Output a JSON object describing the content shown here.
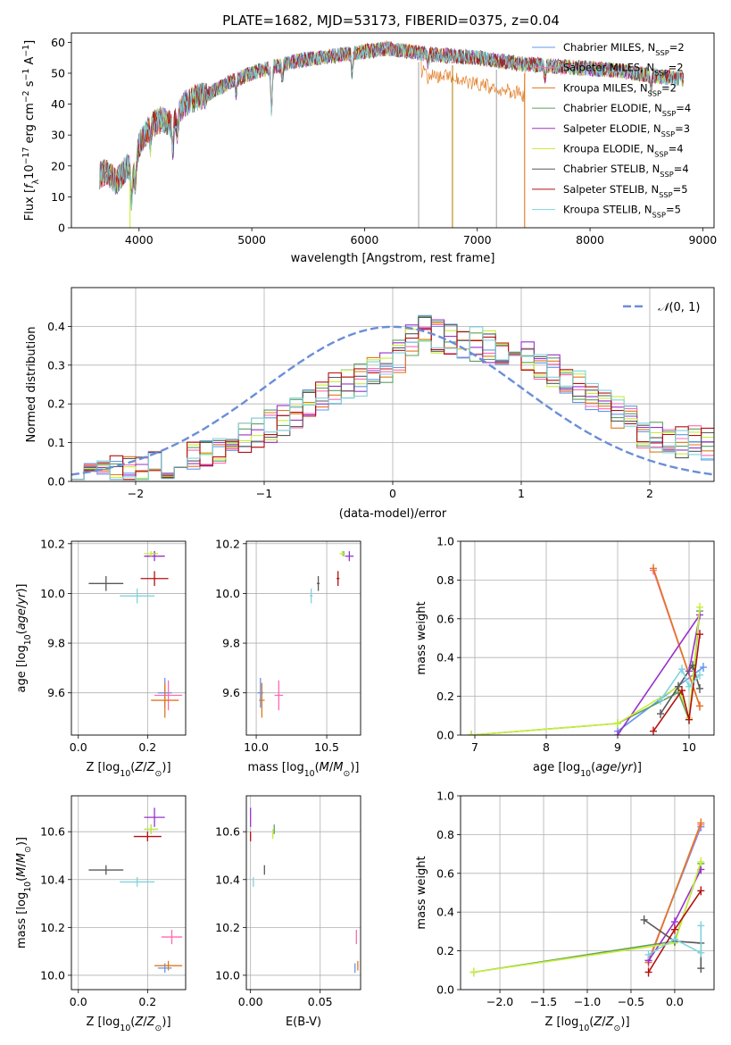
{
  "figure": {
    "title": "PLATE=1682, MJD=53173, FIBERID=0375, z=0.04"
  },
  "models": [
    {
      "label": "Chabrier MILES, N",
      "sub": "SSP",
      "n": "=2",
      "color": "#6495ed"
    },
    {
      "label": "Salpeter MILES, N",
      "sub": "SSP",
      "n": "=2",
      "color": "#ff69b4"
    },
    {
      "label": "Kroupa MILES, N",
      "sub": "SSP",
      "n": "=2",
      "color": "#e0781e"
    },
    {
      "label": "Chabrier ELODIE, N",
      "sub": "SSP",
      "n": "=4",
      "color": "#5f9f5f"
    },
    {
      "label": "Salpeter ELODIE, N",
      "sub": "SSP",
      "n": "=3",
      "color": "#9932cc"
    },
    {
      "label": "Kroupa ELODIE, N",
      "sub": "SSP",
      "n": "=4",
      "color": "#c8ee3a"
    },
    {
      "label": "Chabrier STELIB, N",
      "sub": "SSP",
      "n": "=4",
      "color": "#595959"
    },
    {
      "label": "Salpeter STELIB, N",
      "sub": "SSP",
      "n": "=5",
      "color": "#b41010"
    },
    {
      "label": "Kroupa STELIB, N",
      "sub": "SSP",
      "n": "=5",
      "color": "#7fd3dd"
    }
  ],
  "chart_data": [
    {
      "id": "spectrum",
      "type": "line",
      "xlabel": "wavelength [Angstrom, rest frame]",
      "ylabel": "Flux [fλ10⁻¹⁷ erg cm⁻² s⁻¹ A⁻¹]",
      "xlim": [
        3400,
        9100
      ],
      "ylim": [
        0,
        63
      ],
      "xticks": [
        4000,
        5000,
        6000,
        7000,
        8000,
        9000
      ],
      "yticks": [
        0,
        10,
        20,
        30,
        40,
        50,
        60
      ],
      "x_range_data": [
        3650,
        8830
      ],
      "continuum": {
        "x": [
          3650,
          3700,
          3800,
          3900,
          3950,
          4000,
          4100,
          4200,
          4300,
          4400,
          4500,
          4600,
          4800,
          5000,
          5200,
          5400,
          5600,
          5800,
          6000,
          6200,
          6400,
          6600,
          7000,
          7400,
          7800,
          8200,
          8600,
          8830
        ],
        "y": [
          17,
          18,
          15,
          20,
          17,
          27,
          33,
          35,
          33,
          40,
          42,
          43,
          47,
          50,
          52,
          54,
          55,
          56,
          57,
          58,
          57,
          56,
          55,
          53,
          52,
          51,
          49,
          48
        ]
      },
      "absorption_lines": [
        {
          "x": 3933,
          "depth": 9
        },
        {
          "x": 3968,
          "depth": 7
        },
        {
          "x": 4101,
          "depth": 6
        },
        {
          "x": 4300,
          "depth": 8
        },
        {
          "x": 4340,
          "depth": 5
        },
        {
          "x": 4861,
          "depth": 5
        },
        {
          "x": 5175,
          "depth": 14
        },
        {
          "x": 5270,
          "depth": 5
        },
        {
          "x": 5890,
          "depth": 7
        },
        {
          "x": 6563,
          "depth": 3
        },
        {
          "x": 7600,
          "depth": 4
        },
        {
          "x": 8542,
          "depth": 4
        }
      ],
      "dropouts": [
        {
          "series": 2,
          "x": 6780,
          "color": "#b8860b"
        },
        {
          "series": 2,
          "x": 7420,
          "color": "#e0781e"
        },
        {
          "series": 6,
          "x": 6480,
          "color": "#aaaaaa"
        },
        {
          "series": 6,
          "x": 7170,
          "color": "#aaaaaa"
        },
        {
          "series": 5,
          "x": 3920,
          "color": "#c8ee3a"
        }
      ],
      "series_note_orange_lower": [
        6500,
        7420
      ]
    },
    {
      "id": "residual_histogram",
      "type": "bar",
      "xlabel": "(data-model)/error",
      "ylabel": "Normed distribution",
      "xlim": [
        -2.5,
        2.5
      ],
      "ylim": [
        0,
        0.5
      ],
      "xticks": [
        -2,
        -1,
        0,
        1,
        2
      ],
      "yticks": [
        0.0,
        0.1,
        0.2,
        0.3,
        0.4
      ],
      "bin_width": 0.1,
      "gaussian_label": "𝒩(0, 1)",
      "gaussian_color": "#6a8ed8",
      "shape": {
        "x": [
          -2.5,
          -2.0,
          -1.5,
          -1.0,
          -0.5,
          0.0,
          0.2,
          0.5,
          1.0,
          1.5,
          2.0,
          2.5
        ],
        "y": [
          0.02,
          0.03,
          0.06,
          0.13,
          0.23,
          0.3,
          0.39,
          0.36,
          0.34,
          0.23,
          0.12,
          0.09
        ]
      }
    },
    {
      "id": "age_vs_Z",
      "type": "scatter",
      "xlabel": "Z [log10(Z/Z⊙)]",
      "ylabel": "age  [log10(age/yr)]",
      "xlim": [
        -0.02,
        0.31
      ],
      "ylim": [
        9.43,
        10.21
      ],
      "xticks": [
        0.0,
        0.2
      ],
      "yticks": [
        9.6,
        9.8,
        10.0,
        10.2
      ],
      "points": [
        {
          "series": 0,
          "x": 0.25,
          "y": 9.6,
          "xerr": 0.02,
          "yerr": 0.06
        },
        {
          "series": 1,
          "x": 0.26,
          "y": 9.59,
          "xerr": 0.04,
          "yerr": 0.06
        },
        {
          "series": 2,
          "x": 0.25,
          "y": 9.57,
          "xerr": 0.04,
          "yerr": 0.07
        },
        {
          "series": 3,
          "x": 0.22,
          "y": 10.16,
          "xerr": 0.01,
          "yerr": 0.01
        },
        {
          "series": 4,
          "x": 0.22,
          "y": 10.15,
          "xerr": 0.03,
          "yerr": 0.02
        },
        {
          "series": 5,
          "x": 0.21,
          "y": 10.16,
          "xerr": 0.02,
          "yerr": 0.01
        },
        {
          "series": 6,
          "x": 0.08,
          "y": 10.04,
          "xerr": 0.05,
          "yerr": 0.03
        },
        {
          "series": 7,
          "x": 0.22,
          "y": 10.06,
          "xerr": 0.04,
          "yerr": 0.03
        },
        {
          "series": 8,
          "x": 0.17,
          "y": 9.99,
          "xerr": 0.05,
          "yerr": 0.03
        }
      ]
    },
    {
      "id": "age_vs_mass",
      "type": "scatter",
      "xlabel": "mass [log10(M/M⊙)]",
      "ylabel": "",
      "xlim": [
        9.93,
        10.74
      ],
      "ylim": [
        9.43,
        10.21
      ],
      "xticks": [
        10.0,
        10.5
      ],
      "yticks": [
        9.6,
        9.8,
        10.0,
        10.2
      ],
      "points": [
        {
          "series": 0,
          "x": 10.03,
          "y": 9.6,
          "xerr": 0.02,
          "yerr": 0.06
        },
        {
          "series": 1,
          "x": 10.16,
          "y": 9.59,
          "xerr": 0.03,
          "yerr": 0.06
        },
        {
          "series": 2,
          "x": 10.04,
          "y": 9.57,
          "xerr": 0.02,
          "yerr": 0.07
        },
        {
          "series": 3,
          "x": 10.62,
          "y": 10.16,
          "xerr": 0.01,
          "yerr": 0.01
        },
        {
          "series": 4,
          "x": 10.66,
          "y": 10.15,
          "xerr": 0.03,
          "yerr": 0.02
        },
        {
          "series": 5,
          "x": 10.61,
          "y": 10.16,
          "xerr": 0.02,
          "yerr": 0.01
        },
        {
          "series": 6,
          "x": 10.44,
          "y": 10.04,
          "xerr": 0.01,
          "yerr": 0.03
        },
        {
          "series": 7,
          "x": 10.58,
          "y": 10.06,
          "xerr": 0.01,
          "yerr": 0.03
        },
        {
          "series": 8,
          "x": 10.39,
          "y": 9.99,
          "xerr": 0.01,
          "yerr": 0.03
        }
      ]
    },
    {
      "id": "weight_vs_age",
      "type": "line",
      "xlabel": "age  [log10(age/yr)]",
      "ylabel": "mass weight",
      "xlim": [
        6.8,
        10.35
      ],
      "ylim": [
        0,
        1.0
      ],
      "xticks": [
        7,
        8,
        9,
        10
      ],
      "yticks": [
        0.0,
        0.2,
        0.4,
        0.6,
        0.8,
        1.0
      ],
      "series": [
        {
          "x": [
            9.0,
            10.2
          ],
          "y": [
            0.02,
            0.35
          ]
        },
        {
          "x": [
            9.5,
            10.15
          ],
          "y": [
            0.85,
            0.15
          ]
        },
        {
          "x": [
            9.5,
            10.15
          ],
          "y": [
            0.86,
            0.15
          ]
        },
        {
          "x": [
            6.95,
            9.0,
            9.85,
            10.0,
            10.15
          ],
          "y": [
            0.0,
            0.06,
            0.22,
            0.08,
            0.64
          ]
        },
        {
          "x": [
            9.0,
            10.15,
            10.0
          ],
          "y": [
            0.0,
            0.62,
            0.33
          ]
        },
        {
          "x": [
            6.95,
            9.0,
            9.85,
            10.0,
            10.15
          ],
          "y": [
            0.0,
            0.06,
            0.25,
            0.09,
            0.66
          ]
        },
        {
          "x": [
            9.6,
            9.85,
            10.05,
            10.15
          ],
          "y": [
            0.11,
            0.25,
            0.36,
            0.24
          ]
        },
        {
          "x": [
            9.5,
            9.9,
            10.0,
            10.15
          ],
          "y": [
            0.02,
            0.23,
            0.08,
            0.52
          ]
        },
        {
          "x": [
            9.6,
            9.9,
            10.0,
            10.15
          ],
          "y": [
            0.18,
            0.34,
            0.25,
            0.31
          ]
        }
      ]
    },
    {
      "id": "mass_vs_Z",
      "type": "scatter",
      "xlabel": "Z [log10(Z/Z⊙)]",
      "ylabel": "mass [log10(M/M⊙)]",
      "xlim": [
        -0.02,
        0.31
      ],
      "ylim": [
        9.94,
        10.75
      ],
      "xticks": [
        0.0,
        0.2
      ],
      "yticks": [
        10.0,
        10.2,
        10.4,
        10.6
      ],
      "points": [
        {
          "series": 0,
          "x": 0.25,
          "y": 10.03,
          "xerr": 0.02,
          "yerr": 0.02
        },
        {
          "series": 1,
          "x": 0.27,
          "y": 10.16,
          "xerr": 0.03,
          "yerr": 0.03
        },
        {
          "series": 2,
          "x": 0.26,
          "y": 10.04,
          "xerr": 0.04,
          "yerr": 0.02
        },
        {
          "series": 3,
          "x": 0.21,
          "y": 10.61,
          "xerr": 0.02,
          "yerr": 0.02
        },
        {
          "series": 4,
          "x": 0.22,
          "y": 10.66,
          "xerr": 0.03,
          "yerr": 0.04
        },
        {
          "series": 5,
          "x": 0.21,
          "y": 10.61,
          "xerr": 0.02,
          "yerr": 0.02
        },
        {
          "series": 6,
          "x": 0.08,
          "y": 10.44,
          "xerr": 0.05,
          "yerr": 0.02
        },
        {
          "series": 7,
          "x": 0.2,
          "y": 10.58,
          "xerr": 0.04,
          "yerr": 0.02
        },
        {
          "series": 8,
          "x": 0.17,
          "y": 10.39,
          "xerr": 0.05,
          "yerr": 0.02
        }
      ]
    },
    {
      "id": "mass_vs_ebv",
      "type": "scatter",
      "xlabel": "E(B-V)",
      "ylabel": "",
      "xlim": [
        -0.003,
        0.079
      ],
      "ylim": [
        9.94,
        10.75
      ],
      "xticks": [
        0.0,
        0.05
      ],
      "yticks": [
        10.0,
        10.2,
        10.4,
        10.6
      ],
      "points": [
        {
          "series": 0,
          "x": 0.075,
          "y": 10.03,
          "yerr": 0.02
        },
        {
          "series": 1,
          "x": 0.076,
          "y": 10.16,
          "yerr": 0.03
        },
        {
          "series": 2,
          "x": 0.077,
          "y": 10.04,
          "yerr": 0.02
        },
        {
          "series": 3,
          "x": 0.017,
          "y": 10.61,
          "yerr": 0.02
        },
        {
          "series": 4,
          "x": 0.0,
          "y": 10.66,
          "yerr": 0.04
        },
        {
          "series": 5,
          "x": 0.016,
          "y": 10.59,
          "yerr": 0.02
        },
        {
          "series": 6,
          "x": 0.01,
          "y": 10.44,
          "yerr": 0.02
        },
        {
          "series": 7,
          "x": 0.0,
          "y": 10.58,
          "yerr": 0.02
        },
        {
          "series": 8,
          "x": 0.002,
          "y": 10.39,
          "yerr": 0.02
        }
      ]
    },
    {
      "id": "weight_vs_Z",
      "type": "line",
      "xlabel": "Z [log10(Z/Z⊙)]",
      "ylabel": "mass weight",
      "xlim": [
        -2.45,
        0.45
      ],
      "ylim": [
        0,
        1.0
      ],
      "xticks": [
        -2.0,
        -1.5,
        -1.0,
        -0.5,
        0.0
      ],
      "xticklabels": [
        "−2.0",
        "−1.5",
        "−1.0",
        "−0.5",
        "0.0"
      ],
      "yticks": [
        0.0,
        0.2,
        0.4,
        0.6,
        0.8,
        1.0
      ],
      "series": [
        {
          "x": [
            -0.3,
            0.3
          ],
          "y": [
            0.15,
            0.84
          ]
        },
        {
          "x": [
            -0.3,
            0.3
          ],
          "y": [
            0.15,
            0.85
          ]
        },
        {
          "x": [
            -0.3,
            0.3
          ],
          "y": [
            0.14,
            0.86
          ]
        },
        {
          "x": [
            -2.3,
            0.0,
            0.3
          ],
          "y": [
            0.09,
            0.25,
            0.65
          ]
        },
        {
          "x": [
            -0.3,
            0.0,
            0.3
          ],
          "y": [
            0.15,
            0.35,
            0.62
          ]
        },
        {
          "x": [
            -2.3,
            0.0,
            0.3
          ],
          "y": [
            0.09,
            0.24,
            0.66
          ]
        },
        {
          "x": [
            -0.35,
            0.0,
            0.3,
            0.3
          ],
          "y": [
            0.36,
            0.25,
            0.24,
            0.11
          ]
        },
        {
          "x": [
            -0.3,
            0.0,
            0.3
          ],
          "y": [
            0.09,
            0.31,
            0.51
          ]
        },
        {
          "x": [
            -0.3,
            0.0,
            0.3,
            0.3
          ],
          "y": [
            0.18,
            0.26,
            0.19,
            0.33
          ]
        }
      ]
    }
  ]
}
